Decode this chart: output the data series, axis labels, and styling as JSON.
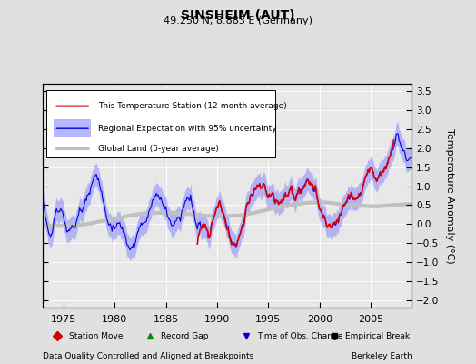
{
  "title": "SINSHEIM (AUT)",
  "subtitle": "49.250 N, 8.883 E (Germany)",
  "ylabel": "Temperature Anomaly (°C)",
  "footer_left": "Data Quality Controlled and Aligned at Breakpoints",
  "footer_right": "Berkeley Earth",
  "xlim": [
    1973.0,
    2009.0
  ],
  "ylim": [
    -2.2,
    3.7
  ],
  "yticks": [
    -2,
    -1.5,
    -1,
    -0.5,
    0,
    0.5,
    1,
    1.5,
    2,
    2.5,
    3,
    3.5
  ],
  "xticks": [
    1975,
    1980,
    1985,
    1990,
    1995,
    2000,
    2005
  ],
  "bg_color": "#e0e0e0",
  "plot_bg_color": "#e8e8e8",
  "regional_fill_color": "#8888ff",
  "regional_line_color": "#0000dd",
  "station_color": "#dd0000",
  "global_color": "#c0c0c0",
  "legend_entries": [
    "This Temperature Station (12-month average)",
    "Regional Expectation with 95% uncertainty",
    "Global Land (5-year average)"
  ],
  "marker_legend": [
    {
      "label": "Station Move",
      "color": "#cc0000",
      "marker": "D"
    },
    {
      "label": "Record Gap",
      "color": "#008800",
      "marker": "^"
    },
    {
      "label": "Time of Obs. Change",
      "color": "#0000cc",
      "marker": "v"
    },
    {
      "label": "Empirical Break",
      "color": "#000000",
      "marker": "s"
    }
  ]
}
